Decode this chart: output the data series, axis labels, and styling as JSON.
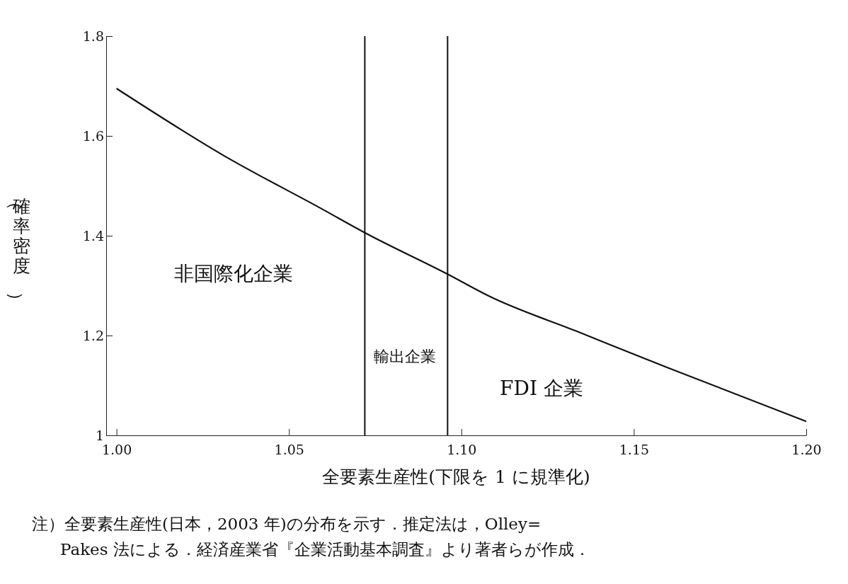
{
  "chart_data": {
    "type": "line",
    "xlabel": "全要素生産性(下限を 1 に規準化)",
    "ylabel": "（確率密度）",
    "x": [
      1.0,
      1.0305,
      1.06,
      1.072,
      1.096,
      1.108,
      1.134,
      1.16,
      1.2
    ],
    "series": [
      {
        "color": "#111111",
        "values": [
          1.695,
          1.563,
          1.452,
          1.406,
          1.323,
          1.279,
          1.207,
          1.135,
          1.028
        ]
      }
    ],
    "xlim": [
      0.997,
      1.2
    ],
    "xticks": [
      {
        "value": 1.0,
        "label": "1.00"
      },
      1.05,
      {
        "value": 1.1,
        "label": "1.10"
      },
      1.15,
      {
        "value": 1.2,
        "label": "1.20"
      }
    ],
    "ylim": [
      1,
      1.8
    ],
    "yticks": [
      1,
      1.2,
      1.4,
      1.6,
      1.8
    ],
    "ref_lines": [
      {
        "axis": "x",
        "value": 1.072,
        "color": "#111111"
      },
      {
        "axis": "x",
        "value": 1.096,
        "color": "#111111"
      }
    ],
    "grid": false,
    "marker": "none",
    "line_style": "solid",
    "annotations": [
      "非国際化企業",
      "輸出企業",
      "FDI 企業",
      "注）全要素生産性(日本，2003 年)の分布を示す．推定法は，Olley=\nPakes 法による．経済産業省『企業活動基本調査』より著者らが作成．"
    ]
  }
}
